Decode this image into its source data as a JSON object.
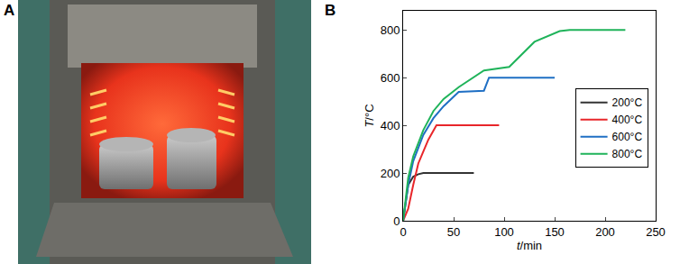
{
  "panel_labels": [
    "A",
    "B"
  ],
  "chart_data": {
    "type": "line",
    "x_label": "t/min",
    "y_label": "T/°C",
    "xlim": [
      0,
      250
    ],
    "xticks": [
      0,
      50,
      100,
      150,
      200,
      250
    ],
    "ylim": [
      0,
      880
    ],
    "yticks": [
      0,
      200,
      400,
      600,
      800
    ],
    "grid": false,
    "legend": "right",
    "series": [
      {
        "name": "200°C",
        "color": "#333333",
        "x": [
          0,
          5,
          10,
          15,
          20,
          70
        ],
        "values": [
          0,
          150,
          185,
          195,
          200,
          200
        ]
      },
      {
        "name": "400°C",
        "color": "#e8262a",
        "x": [
          0,
          5,
          10,
          15,
          20,
          25,
          33,
          95
        ],
        "values": [
          0,
          50,
          150,
          240,
          290,
          340,
          400,
          400
        ]
      },
      {
        "name": "600°C",
        "color": "#1f6fc4",
        "x": [
          0,
          5,
          10,
          20,
          30,
          40,
          55,
          80,
          85,
          150
        ],
        "values": [
          0,
          150,
          250,
          360,
          430,
          480,
          540,
          545,
          600,
          600
        ]
      },
      {
        "name": "800°C",
        "color": "#1fb35a",
        "x": [
          0,
          5,
          10,
          20,
          30,
          40,
          55,
          80,
          105,
          130,
          155,
          165,
          220
        ],
        "values": [
          0,
          180,
          270,
          380,
          460,
          510,
          560,
          630,
          645,
          750,
          795,
          800,
          800
        ]
      }
    ]
  }
}
